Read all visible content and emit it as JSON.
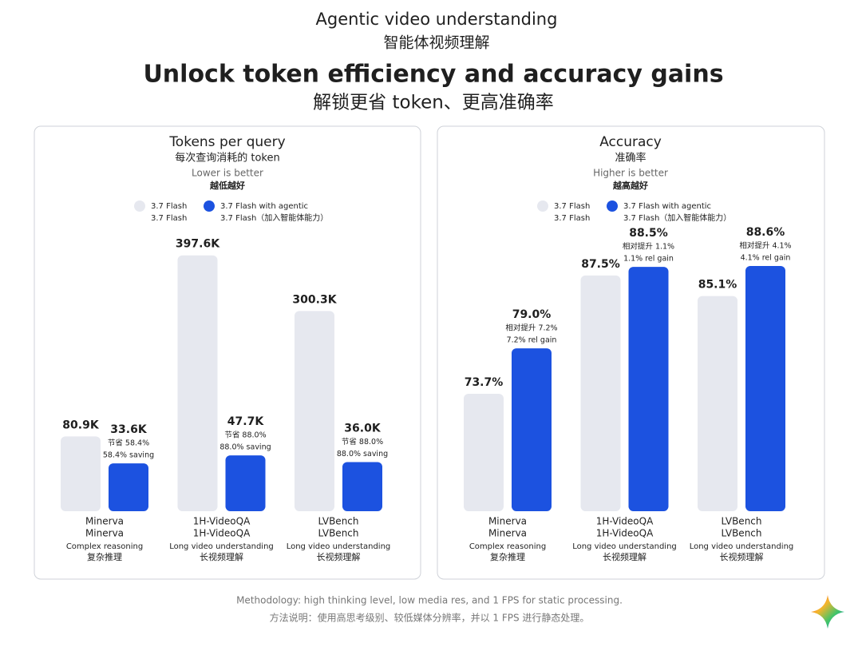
{
  "header": {
    "kicker": "Agentic video understanding",
    "kicker_zh": "智能体视频理解",
    "title": "Unlock token efficiency and accuracy gains",
    "title_zh": "解锁更省 token、更高准确率"
  },
  "chart_data": [
    {
      "type": "bar",
      "title": "Tokens per query",
      "title_zh": "每次查询消耗的 token",
      "subtitle": "Lower is better",
      "subtitle_zh": "越低越好",
      "categories": [
        "Minerva",
        "1H-VideoQA",
        "LVBench"
      ],
      "categories_zh": [
        "Minerva",
        "1H-VideoQA",
        "LVBench"
      ],
      "descriptions": [
        "Complex reasoning",
        "Long video understanding",
        "Long video understanding"
      ],
      "descriptions_zh": [
        "复杂推理",
        "长视频理解",
        "长视频理解"
      ],
      "ylim": [
        -50,
        400
      ],
      "series": [
        {
          "name": "3.7 Flash",
          "name_zh": "3.7 Flash",
          "color": "#e6e8ef",
          "values": [
            80.9,
            397.6,
            300.3
          ],
          "value_labels": [
            "80.9K",
            "397.6K",
            "300.3K"
          ]
        },
        {
          "name": "3.7 Flash with agentic",
          "name_zh": "3.7 Flash（加入智能体能力）",
          "color": "#1c52e0",
          "values": [
            33.6,
            47.7,
            36.0
          ],
          "value_labels": [
            "33.6K",
            "47.7K",
            "36.0K"
          ],
          "notes_zh": [
            "节省 58.4%",
            "节省 88.0%",
            "节省 88.0%"
          ],
          "notes": [
            "58.4% saving",
            "88.0% saving",
            "88.0% saving"
          ]
        }
      ]
    },
    {
      "type": "bar",
      "title": "Accuracy",
      "title_zh": "准确率",
      "subtitle": "Higher is better",
      "subtitle_zh": "越高越好",
      "categories": [
        "Minerva",
        "1H-VideoQA",
        "LVBench"
      ],
      "categories_zh": [
        "Minerva",
        "1H-VideoQA",
        "LVBench"
      ],
      "descriptions": [
        "Complex reasoning",
        "Long video understanding",
        "Long video understanding"
      ],
      "descriptions_zh": [
        "复杂推理",
        "长视频理解",
        "长视频理解"
      ],
      "ylim": [
        60,
        90
      ],
      "series": [
        {
          "name": "3.7 Flash",
          "name_zh": "3.7 Flash",
          "color": "#e6e8ef",
          "values": [
            73.7,
            87.5,
            85.1
          ],
          "value_labels": [
            "73.7%",
            "87.5%",
            "85.1%"
          ]
        },
        {
          "name": "3.7 Flash with agentic",
          "name_zh": "3.7 Flash（加入智能体能力）",
          "color": "#1c52e0",
          "values": [
            79.0,
            88.5,
            88.6
          ],
          "value_labels": [
            "79.0%",
            "88.5%",
            "88.6%"
          ],
          "notes_zh": [
            "相对提升 7.2%",
            "相对提升 1.1%",
            "相对提升 4.1%"
          ],
          "notes": [
            "7.2% rel gain",
            "1.1% rel gain",
            "4.1% rel gain"
          ]
        }
      ]
    }
  ],
  "footer": {
    "methodology": "Methodology: high thinking level, low media res, and 1 FPS for static processing.",
    "methodology_zh": "方法说明：使用高思考级别、较低媒体分辨率，并以 1 FPS 进行静态处理。"
  }
}
